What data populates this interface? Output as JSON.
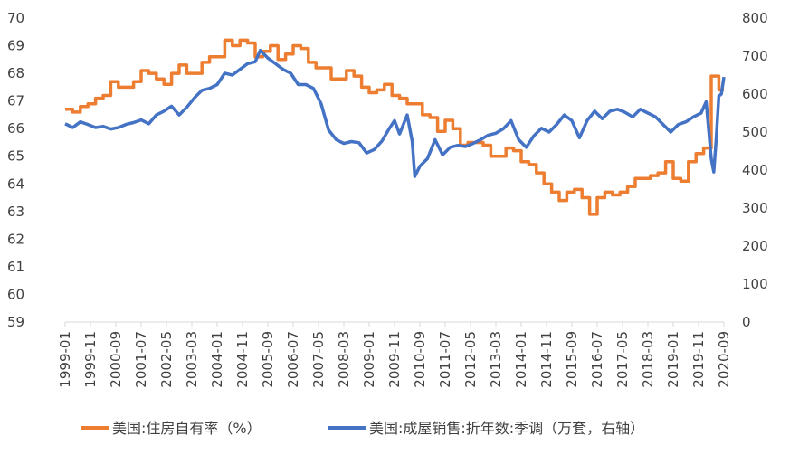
{
  "chart_data": {
    "type": "line",
    "title": "",
    "xlabel": "",
    "ylabel_left": "",
    "ylabel_right": "",
    "ylim_left": [
      59,
      70
    ],
    "ylim_right": [
      0,
      800
    ],
    "yticks_left": [
      "59",
      "60",
      "61",
      "62",
      "63",
      "64",
      "65",
      "66",
      "67",
      "68",
      "69",
      "70"
    ],
    "yticks_right": [
      "0",
      "100",
      "200",
      "300",
      "400",
      "500",
      "600",
      "700",
      "800"
    ],
    "x_start": "1999-01",
    "x_end": "2020-09",
    "xticks": [
      "1999-01",
      "1999-11",
      "2000-09",
      "2001-07",
      "2002-05",
      "2003-03",
      "2004-01",
      "2004-11",
      "2005-09",
      "2006-07",
      "2007-05",
      "2008-03",
      "2009-01",
      "2009-11",
      "2010-09",
      "2011-07",
      "2012-05",
      "2013-03",
      "2014-01",
      "2014-11",
      "2015-09",
      "2016-07",
      "2017-05",
      "2018-03",
      "2019-01",
      "2019-11",
      "2020-09"
    ],
    "grid": false,
    "legend_position": "bottom",
    "series": [
      {
        "name": "美国:住房自有率（%）",
        "color": "#ED7D31",
        "axis": "left",
        "step": "quarterly",
        "points": [
          [
            "1999-01",
            66.7
          ],
          [
            "1999-04",
            66.6
          ],
          [
            "1999-07",
            66.8
          ],
          [
            "1999-10",
            66.9
          ],
          [
            "2000-01",
            67.1
          ],
          [
            "2000-04",
            67.2
          ],
          [
            "2000-07",
            67.7
          ],
          [
            "2000-10",
            67.5
          ],
          [
            "2001-01",
            67.5
          ],
          [
            "2001-04",
            67.7
          ],
          [
            "2001-07",
            68.1
          ],
          [
            "2001-10",
            68.0
          ],
          [
            "2002-01",
            67.8
          ],
          [
            "2002-04",
            67.6
          ],
          [
            "2002-07",
            68.0
          ],
          [
            "2002-10",
            68.3
          ],
          [
            "2003-01",
            68.0
          ],
          [
            "2003-04",
            68.0
          ],
          [
            "2003-07",
            68.4
          ],
          [
            "2003-10",
            68.6
          ],
          [
            "2004-01",
            68.6
          ],
          [
            "2004-04",
            69.2
          ],
          [
            "2004-07",
            69.0
          ],
          [
            "2004-10",
            69.2
          ],
          [
            "2005-01",
            69.1
          ],
          [
            "2005-04",
            68.6
          ],
          [
            "2005-07",
            68.8
          ],
          [
            "2005-10",
            69.0
          ],
          [
            "2006-01",
            68.5
          ],
          [
            "2006-04",
            68.7
          ],
          [
            "2006-07",
            69.0
          ],
          [
            "2006-10",
            68.9
          ],
          [
            "2007-01",
            68.4
          ],
          [
            "2007-04",
            68.2
          ],
          [
            "2007-07",
            68.2
          ],
          [
            "2007-10",
            67.8
          ],
          [
            "2008-01",
            67.8
          ],
          [
            "2008-04",
            68.1
          ],
          [
            "2008-07",
            67.9
          ],
          [
            "2008-10",
            67.5
          ],
          [
            "2009-01",
            67.3
          ],
          [
            "2009-04",
            67.4
          ],
          [
            "2009-07",
            67.6
          ],
          [
            "2009-10",
            67.2
          ],
          [
            "2010-01",
            67.1
          ],
          [
            "2010-04",
            66.9
          ],
          [
            "2010-07",
            66.9
          ],
          [
            "2010-10",
            66.5
          ],
          [
            "2011-01",
            66.4
          ],
          [
            "2011-04",
            65.9
          ],
          [
            "2011-07",
            66.3
          ],
          [
            "2011-10",
            66.0
          ],
          [
            "2012-01",
            65.4
          ],
          [
            "2012-04",
            65.5
          ],
          [
            "2012-07",
            65.5
          ],
          [
            "2012-10",
            65.4
          ],
          [
            "2013-01",
            65.0
          ],
          [
            "2013-04",
            65.0
          ],
          [
            "2013-07",
            65.3
          ],
          [
            "2013-10",
            65.2
          ],
          [
            "2014-01",
            64.8
          ],
          [
            "2014-04",
            64.7
          ],
          [
            "2014-07",
            64.4
          ],
          [
            "2014-10",
            64.0
          ],
          [
            "2015-01",
            63.7
          ],
          [
            "2015-04",
            63.4
          ],
          [
            "2015-07",
            63.7
          ],
          [
            "2015-10",
            63.8
          ],
          [
            "2016-01",
            63.5
          ],
          [
            "2016-04",
            62.9
          ],
          [
            "2016-07",
            63.5
          ],
          [
            "2016-10",
            63.7
          ],
          [
            "2017-01",
            63.6
          ],
          [
            "2017-04",
            63.7
          ],
          [
            "2017-07",
            63.9
          ],
          [
            "2017-10",
            64.2
          ],
          [
            "2018-01",
            64.2
          ],
          [
            "2018-04",
            64.3
          ],
          [
            "2018-07",
            64.4
          ],
          [
            "2018-10",
            64.8
          ],
          [
            "2019-01",
            64.2
          ],
          [
            "2019-04",
            64.1
          ],
          [
            "2019-07",
            64.8
          ],
          [
            "2019-10",
            65.1
          ],
          [
            "2020-01",
            65.3
          ],
          [
            "2020-04",
            67.9
          ],
          [
            "2020-07",
            67.4
          ],
          [
            "2020-09",
            67.4
          ]
        ]
      },
      {
        "name": "美国:成屋销售:折年数:季调（万套，右轴）",
        "color": "#4472C4",
        "axis": "right",
        "step": "monthly",
        "points": [
          [
            "1999-01",
            522
          ],
          [
            "1999-04",
            512
          ],
          [
            "1999-07",
            527
          ],
          [
            "1999-10",
            520
          ],
          [
            "2000-01",
            512
          ],
          [
            "2000-04",
            515
          ],
          [
            "2000-07",
            508
          ],
          [
            "2000-10",
            512
          ],
          [
            "2001-01",
            520
          ],
          [
            "2001-04",
            525
          ],
          [
            "2001-07",
            532
          ],
          [
            "2001-10",
            522
          ],
          [
            "2002-01",
            545
          ],
          [
            "2002-04",
            555
          ],
          [
            "2002-07",
            568
          ],
          [
            "2002-10",
            545
          ],
          [
            "2003-01",
            565
          ],
          [
            "2003-04",
            590
          ],
          [
            "2003-07",
            610
          ],
          [
            "2003-10",
            615
          ],
          [
            "2004-01",
            625
          ],
          [
            "2004-04",
            655
          ],
          [
            "2004-07",
            650
          ],
          [
            "2004-10",
            665
          ],
          [
            "2005-01",
            680
          ],
          [
            "2005-04",
            685
          ],
          [
            "2005-06",
            715
          ],
          [
            "2005-09",
            695
          ],
          [
            "2005-12",
            680
          ],
          [
            "2006-03",
            665
          ],
          [
            "2006-06",
            655
          ],
          [
            "2006-09",
            625
          ],
          [
            "2006-12",
            625
          ],
          [
            "2007-03",
            615
          ],
          [
            "2007-06",
            575
          ],
          [
            "2007-09",
            505
          ],
          [
            "2007-12",
            480
          ],
          [
            "2008-03",
            470
          ],
          [
            "2008-06",
            475
          ],
          [
            "2008-09",
            472
          ],
          [
            "2008-12",
            445
          ],
          [
            "2009-03",
            454
          ],
          [
            "2009-06",
            476
          ],
          [
            "2009-09",
            510
          ],
          [
            "2009-11",
            530
          ],
          [
            "2010-01",
            495
          ],
          [
            "2010-04",
            545
          ],
          [
            "2010-06",
            475
          ],
          [
            "2010-07",
            383
          ],
          [
            "2010-09",
            410
          ],
          [
            "2010-12",
            430
          ],
          [
            "2011-03",
            480
          ],
          [
            "2011-06",
            440
          ],
          [
            "2011-09",
            460
          ],
          [
            "2011-12",
            465
          ],
          [
            "2012-03",
            462
          ],
          [
            "2012-06",
            470
          ],
          [
            "2012-09",
            480
          ],
          [
            "2012-12",
            492
          ],
          [
            "2013-03",
            497
          ],
          [
            "2013-06",
            509
          ],
          [
            "2013-09",
            530
          ],
          [
            "2013-12",
            480
          ],
          [
            "2014-03",
            460
          ],
          [
            "2014-06",
            490
          ],
          [
            "2014-09",
            510
          ],
          [
            "2014-12",
            500
          ],
          [
            "2015-03",
            520
          ],
          [
            "2015-06",
            545
          ],
          [
            "2015-09",
            530
          ],
          [
            "2015-12",
            485
          ],
          [
            "2016-03",
            530
          ],
          [
            "2016-06",
            555
          ],
          [
            "2016-09",
            535
          ],
          [
            "2016-12",
            555
          ],
          [
            "2017-03",
            560
          ],
          [
            "2017-06",
            552
          ],
          [
            "2017-09",
            540
          ],
          [
            "2017-12",
            560
          ],
          [
            "2018-03",
            550
          ],
          [
            "2018-06",
            540
          ],
          [
            "2018-09",
            520
          ],
          [
            "2018-12",
            500
          ],
          [
            "2019-03",
            520
          ],
          [
            "2019-06",
            527
          ],
          [
            "2019-09",
            540
          ],
          [
            "2019-12",
            550
          ],
          [
            "2020-02",
            580
          ],
          [
            "2020-04",
            430
          ],
          [
            "2020-05",
            395
          ],
          [
            "2020-06",
            485
          ],
          [
            "2020-07",
            595
          ],
          [
            "2020-08",
            600
          ],
          [
            "2020-09",
            645
          ]
        ]
      }
    ]
  }
}
